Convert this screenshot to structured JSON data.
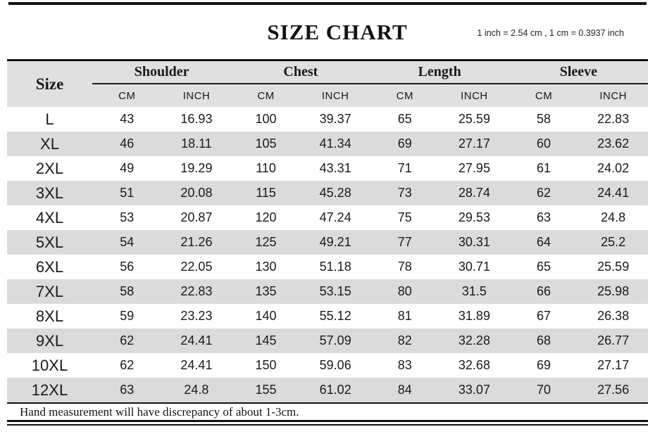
{
  "page": {
    "title": "SIZE CHART",
    "subtitle": "1 inch = 2.54 cm , 1 cm = 0.3937 inch",
    "footnote": "Hand measurement will have discrepancy of about 1-3cm."
  },
  "colors": {
    "header_background": "#e0e0e0",
    "stripe_background": "#dbdbdb",
    "rule": "#121212",
    "text": "#1a1a1a"
  },
  "chart_data": {
    "type": "table",
    "title": "SIZE CHART",
    "size_header": "Size",
    "column_groups": [
      "Shoulder",
      "Chest",
      "Length",
      "Sleeve"
    ],
    "unit_headers": [
      "CM",
      "INCH",
      "CM",
      "INCH",
      "CM",
      "INCH",
      "CM",
      "INCH"
    ],
    "rows": [
      {
        "size": "L",
        "values": [
          43,
          16.93,
          100,
          39.37,
          65,
          25.59,
          58,
          22.83
        ]
      },
      {
        "size": "XL",
        "values": [
          46,
          18.11,
          105,
          41.34,
          69,
          27.17,
          60,
          23.62
        ]
      },
      {
        "size": "2XL",
        "values": [
          49,
          19.29,
          110,
          43.31,
          71,
          27.95,
          61,
          24.02
        ]
      },
      {
        "size": "3XL",
        "values": [
          51,
          20.08,
          115,
          45.28,
          73,
          28.74,
          62,
          24.41
        ]
      },
      {
        "size": "4XL",
        "values": [
          53,
          20.87,
          120,
          47.24,
          75,
          29.53,
          63,
          24.8
        ]
      },
      {
        "size": "5XL",
        "values": [
          54,
          21.26,
          125,
          49.21,
          77,
          30.31,
          64,
          25.2
        ]
      },
      {
        "size": "6XL",
        "values": [
          56,
          22.05,
          130,
          51.18,
          78,
          30.71,
          65,
          25.59
        ]
      },
      {
        "size": "7XL",
        "values": [
          58,
          22.83,
          135,
          53.15,
          80,
          31.5,
          66,
          25.98
        ]
      },
      {
        "size": "8XL",
        "values": [
          59,
          23.23,
          140,
          55.12,
          81,
          31.89,
          67,
          26.38
        ]
      },
      {
        "size": "9XL",
        "values": [
          62,
          24.41,
          145,
          57.09,
          82,
          32.28,
          68,
          26.77
        ]
      },
      {
        "size": "10XL",
        "values": [
          62,
          24.41,
          150,
          59.06,
          83,
          32.68,
          69,
          27.17
        ]
      },
      {
        "size": "12XL",
        "values": [
          63,
          24.8,
          155,
          61.02,
          84,
          33.07,
          70,
          27.56
        ]
      }
    ]
  }
}
